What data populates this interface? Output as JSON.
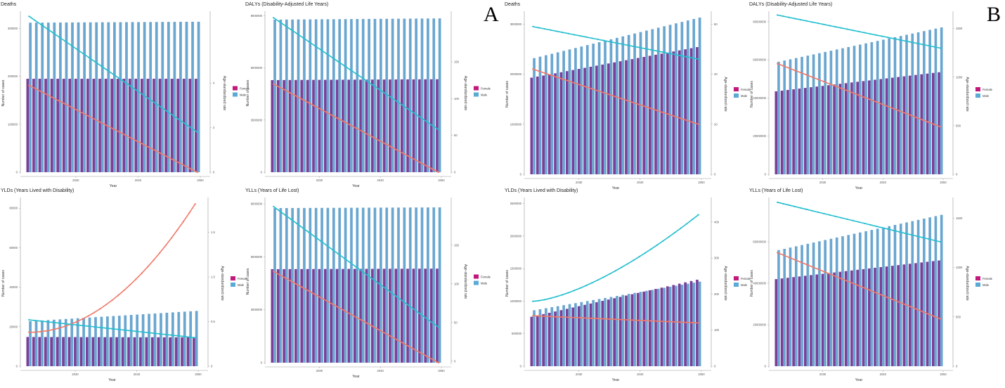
{
  "panel_labels": [
    "A",
    "B"
  ],
  "colors": {
    "female_bar": "#7b3f99",
    "male_bar": "#6aa6d0",
    "female_line": "#f07a6a",
    "male_line": "#25bfcf",
    "legend_female": "#c2187b",
    "legend_male": "#5aaad6"
  },
  "chart_data": [
    {
      "panel": "A",
      "type": "bar",
      "title": "Deaths",
      "xlabel": "Year",
      "ylabel": "Number of cases",
      "y2label": "Age-standardized rate",
      "x_ticks": [
        "2030",
        "2040",
        "2050"
      ],
      "x_range": [
        2022,
        2050
      ],
      "ylim": [
        0,
        330000
      ],
      "y_ticks": [
        "0",
        "100000",
        "200000",
        "300000"
      ],
      "y2lim": [
        0,
        7.1
      ],
      "y2_ticks": [
        "0",
        "2",
        "4"
      ],
      "legend": [
        "Female",
        "Male"
      ],
      "series": [
        {
          "name": "Female",
          "kind": "bar",
          "start": 195000,
          "end": 195000
        },
        {
          "name": "Male",
          "kind": "bar",
          "start": 312000,
          "end": 314000
        },
        {
          "name": "Female",
          "kind": "line",
          "start": 3.9,
          "end": 0.0
        },
        {
          "name": "Male",
          "kind": "line",
          "start": 7.0,
          "end": 1.8
        }
      ]
    },
    {
      "panel": "A",
      "type": "bar",
      "title": "DALYs (Disability-Adjusted Life Years)",
      "xlabel": "Year",
      "ylabel": "Number of cases",
      "y2label": "Age-standardized rate",
      "x_ticks": [
        "2030",
        "2040",
        "2050"
      ],
      "x_range": [
        2022,
        2050
      ],
      "ylim": [
        0,
        9100000
      ],
      "y_ticks": [
        "0",
        "3000000",
        "6000000",
        "9000000"
      ],
      "y2lim": [
        0,
        215
      ],
      "y2_ticks": [
        "0",
        "50",
        "100",
        "150"
      ],
      "legend": [
        "Female",
        "Male"
      ],
      "series": [
        {
          "name": "Female",
          "kind": "bar",
          "start": 5300000,
          "end": 5350000
        },
        {
          "name": "Male",
          "kind": "bar",
          "start": 8780000,
          "end": 8850000
        },
        {
          "name": "Female",
          "kind": "line",
          "start": 120,
          "end": 0
        },
        {
          "name": "Male",
          "kind": "line",
          "start": 210,
          "end": 58
        }
      ]
    },
    {
      "panel": "B",
      "type": "bar",
      "title": "Deaths",
      "xlabel": "Year",
      "ylabel": "Number of cases",
      "y2label": "Age-standardized rate",
      "x_ticks": [
        "2030",
        "2040",
        "2050"
      ],
      "x_range": [
        2022,
        2050
      ],
      "ylim": [
        0,
        3200000
      ],
      "y_ticks": [
        "0",
        "1000000",
        "2000000",
        "3000000"
      ],
      "y2lim": [
        0,
        64
      ],
      "y2_ticks": [
        "0",
        "20",
        "40",
        "60"
      ],
      "legend": [
        "Female",
        "Male"
      ],
      "series": [
        {
          "name": "Female",
          "kind": "bar",
          "start": 1930000,
          "end": 2540000
        },
        {
          "name": "Male",
          "kind": "bar",
          "start": 2320000,
          "end": 3130000
        },
        {
          "name": "Female",
          "kind": "line",
          "start": 42,
          "end": 20
        },
        {
          "name": "Male",
          "kind": "line",
          "start": 59,
          "end": 46
        }
      ]
    },
    {
      "panel": "B",
      "type": "bar",
      "title": "DALYs (Disability-Adjusted Life Years)",
      "xlabel": "Year",
      "ylabel": "Number of cases",
      "y2label": "Age-standardized rate",
      "x_ticks": [
        "2030",
        "2040",
        "2050"
      ],
      "x_range": [
        2022,
        2050
      ],
      "ylim": [
        0,
        84000000
      ],
      "y_ticks": [
        "0",
        "20000000",
        "40000000",
        "60000000",
        "80000000"
      ],
      "y2lim": [
        0,
        1650
      ],
      "y2_ticks": [
        "0",
        "500",
        "1000",
        "1500"
      ],
      "legend": [
        "Female",
        "Male"
      ],
      "series": [
        {
          "name": "Female",
          "kind": "bar",
          "start": 43500000,
          "end": 53500000
        },
        {
          "name": "Male",
          "kind": "bar",
          "start": 59000000,
          "end": 77000000
        },
        {
          "name": "Female",
          "kind": "line",
          "start": 1140,
          "end": 490
        },
        {
          "name": "Male",
          "kind": "line",
          "start": 1640,
          "end": 1300
        }
      ]
    },
    {
      "panel": "A",
      "type": "bar",
      "title": "YLDs (Years Lived with Disability)",
      "xlabel": "Year",
      "ylabel": "Number of cases",
      "y2label": "Age-standardized rate",
      "x_ticks": [
        "2030",
        "2040",
        "2050"
      ],
      "x_range": [
        2022,
        2050
      ],
      "ylim": [
        0,
        84000
      ],
      "y_ticks": [
        "0",
        "20000",
        "40000",
        "60000",
        "80000"
      ],
      "y2lim": [
        0,
        1.86
      ],
      "y2_ticks": [
        "0",
        "0.5",
        "1.0",
        "1.5"
      ],
      "legend": [
        "Female",
        "Male"
      ],
      "series": [
        {
          "name": "Female",
          "kind": "bar",
          "start": 14800,
          "end": 14600
        },
        {
          "name": "Male",
          "kind": "bar",
          "start": 22800,
          "end": 28000
        },
        {
          "name": "Female",
          "kind": "line",
          "start": 0.38,
          "end": 1.82,
          "curve": 2
        },
        {
          "name": "Male",
          "kind": "line",
          "start": 0.52,
          "end": 0.32
        }
      ]
    },
    {
      "panel": "A",
      "type": "bar",
      "title": "YLLs (Years of Life Lost)",
      "xlabel": "Year",
      "ylabel": "Number of cases",
      "y2label": "Age-standardized rate",
      "x_ticks": [
        "2030",
        "2040",
        "2050"
      ],
      "x_range": [
        2022,
        2050
      ],
      "ylim": [
        0,
        9200000
      ],
      "y_ticks": [
        "0",
        "3000000",
        "6000000",
        "9000000"
      ],
      "y2lim": [
        -2,
        208
      ],
      "y2_ticks": [
        "0",
        "50",
        "100",
        "150"
      ],
      "legend": [
        "Female",
        "Male"
      ],
      "series": [
        {
          "name": "Female",
          "kind": "bar",
          "start": 5300000,
          "end": 5330000
        },
        {
          "name": "Male",
          "kind": "bar",
          "start": 8760000,
          "end": 8800000
        },
        {
          "name": "Female",
          "kind": "line",
          "start": 116,
          "end": -2
        },
        {
          "name": "Male",
          "kind": "line",
          "start": 200,
          "end": 44
        }
      ]
    },
    {
      "panel": "B",
      "type": "bar",
      "title": "YLDs (Years Lived with Disability)",
      "xlabel": "Year",
      "ylabel": "Number of cases",
      "y2label": "Age-standardized rate",
      "x_ticks": [
        "2030",
        "2040",
        "2050"
      ],
      "x_range": [
        2022,
        2050
      ],
      "ylim": [
        0,
        2550000
      ],
      "y_ticks": [
        "0",
        "500000",
        "1000000",
        "1500000",
        "2000000",
        "2500000"
      ],
      "y2lim": [
        0,
        460
      ],
      "y2_ticks": [
        "0",
        "100",
        "200",
        "300",
        "400"
      ],
      "legend": [
        "Female",
        "Male"
      ],
      "series": [
        {
          "name": "Female",
          "kind": "bar",
          "start": 760000,
          "end": 1330000
        },
        {
          "name": "Male",
          "kind": "bar",
          "start": 860000,
          "end": 1300000
        },
        {
          "name": "Female",
          "kind": "line",
          "start": 140,
          "end": 120
        },
        {
          "name": "Male",
          "kind": "line",
          "start": 180,
          "end": 420,
          "curve": 1.5
        }
      ]
    },
    {
      "panel": "B",
      "type": "bar",
      "title": "YLLs (Years of Life Lost)",
      "xlabel": "Year",
      "ylabel": "Number of cases",
      "y2label": "Age-standardized rate",
      "x_ticks": [
        "2030",
        "2040",
        "2050"
      ],
      "x_range": [
        2022,
        2050
      ],
      "ylim": [
        0,
        80000000
      ],
      "y_ticks": [
        "0",
        "20000000",
        "40000000",
        "60000000"
      ],
      "y2lim": [
        0,
        1680
      ],
      "y2_ticks": [
        "0",
        "500",
        "1000",
        "1500"
      ],
      "legend": [
        "Female",
        "Male"
      ],
      "series": [
        {
          "name": "Female",
          "kind": "bar",
          "start": 42000000,
          "end": 51000000
        },
        {
          "name": "Male",
          "kind": "bar",
          "start": 56000000,
          "end": 73000000
        },
        {
          "name": "Female",
          "kind": "line",
          "start": 1150,
          "end": 480
        },
        {
          "name": "Male",
          "kind": "line",
          "start": 1660,
          "end": 1260
        }
      ]
    }
  ]
}
